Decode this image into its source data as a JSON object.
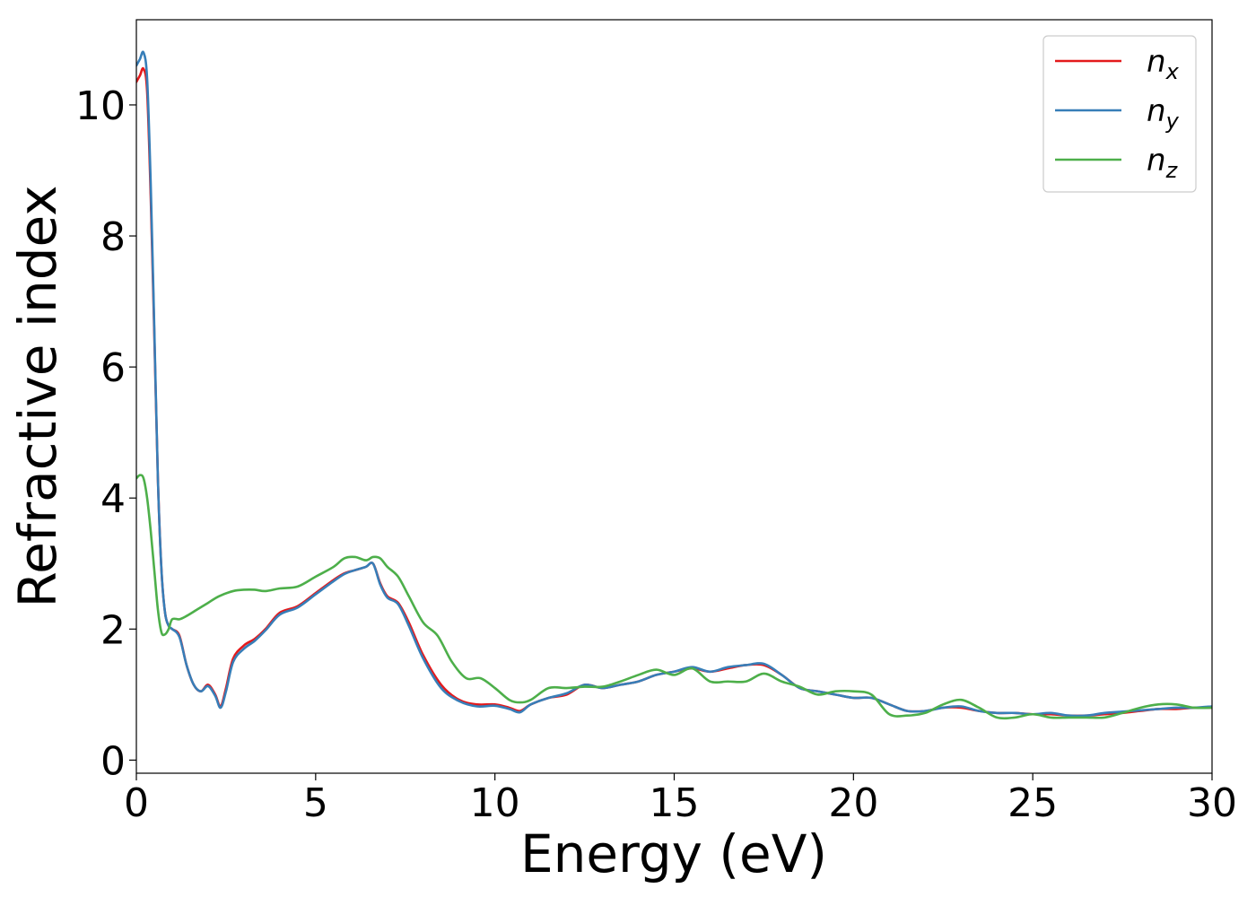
{
  "chart_data": {
    "type": "line",
    "title": "",
    "xlabel": "Energy (eV)",
    "ylabel": "Refractive index",
    "xlim": [
      0,
      30
    ],
    "ylim": [
      -0.2,
      11.3
    ],
    "xticks": [
      0,
      5,
      10,
      15,
      20,
      25,
      30
    ],
    "yticks": [
      0,
      2,
      4,
      6,
      8,
      10
    ],
    "grid": false,
    "legend_position": "top-right",
    "series": [
      {
        "name": "n_x",
        "base": "n",
        "sub": "x",
        "color": "#e41a1c",
        "x": [
          0,
          0.1,
          0.2,
          0.3,
          0.4,
          0.5,
          0.6,
          0.7,
          0.8,
          0.9,
          1.0,
          1.2,
          1.4,
          1.6,
          1.8,
          2.0,
          2.2,
          2.35,
          2.5,
          2.7,
          3.0,
          3.3,
          3.6,
          4.0,
          4.5,
          5.0,
          5.5,
          5.8,
          6.1,
          6.4,
          6.6,
          6.8,
          7.0,
          7.3,
          7.6,
          8.0,
          8.5,
          9.0,
          9.5,
          10.0,
          10.4,
          10.7,
          11.0,
          11.5,
          12.0,
          12.5,
          13.0,
          13.5,
          14.0,
          14.5,
          15.0,
          15.5,
          16.0,
          16.5,
          17.0,
          17.5,
          18.0,
          18.5,
          19.0,
          19.5,
          20.0,
          20.5,
          21.0,
          21.5,
          22.0,
          22.5,
          23.0,
          23.5,
          24.0,
          24.5,
          25.0,
          25.5,
          26.0,
          26.5,
          27.0,
          27.5,
          28.0,
          28.5,
          29.0,
          29.5,
          30.0
        ],
        "values": [
          10.35,
          10.45,
          10.55,
          10.2,
          8.6,
          6.5,
          4.3,
          2.9,
          2.25,
          2.05,
          2.0,
          1.9,
          1.45,
          1.15,
          1.05,
          1.15,
          1.0,
          0.82,
          1.1,
          1.55,
          1.75,
          1.85,
          2.0,
          2.25,
          2.35,
          2.55,
          2.75,
          2.85,
          2.9,
          2.95,
          3.0,
          2.7,
          2.5,
          2.4,
          2.1,
          1.6,
          1.15,
          0.92,
          0.85,
          0.85,
          0.8,
          0.75,
          0.85,
          0.95,
          1.0,
          1.15,
          1.1,
          1.15,
          1.2,
          1.3,
          1.35,
          1.4,
          1.35,
          1.4,
          1.45,
          1.45,
          1.3,
          1.1,
          1.05,
          1.0,
          0.95,
          0.95,
          0.85,
          0.75,
          0.75,
          0.8,
          0.8,
          0.75,
          0.72,
          0.72,
          0.7,
          0.7,
          0.68,
          0.68,
          0.7,
          0.72,
          0.75,
          0.78,
          0.78,
          0.8,
          0.8
        ]
      },
      {
        "name": "n_y",
        "base": "n",
        "sub": "y",
        "color": "#377eb8",
        "x": [
          0,
          0.1,
          0.2,
          0.3,
          0.4,
          0.5,
          0.6,
          0.7,
          0.8,
          0.9,
          1.0,
          1.2,
          1.4,
          1.6,
          1.8,
          2.0,
          2.2,
          2.35,
          2.5,
          2.7,
          3.0,
          3.3,
          3.6,
          4.0,
          4.5,
          5.0,
          5.5,
          5.8,
          6.1,
          6.4,
          6.6,
          6.8,
          7.0,
          7.3,
          7.6,
          8.0,
          8.5,
          9.0,
          9.5,
          10.0,
          10.4,
          10.7,
          11.0,
          11.5,
          12.0,
          12.5,
          13.0,
          13.5,
          14.0,
          14.5,
          15.0,
          15.5,
          16.0,
          16.5,
          17.0,
          17.5,
          18.0,
          18.5,
          19.0,
          19.5,
          20.0,
          20.5,
          21.0,
          21.5,
          22.0,
          22.5,
          23.0,
          23.5,
          24.0,
          24.5,
          25.0,
          25.5,
          26.0,
          26.5,
          27.0,
          27.5,
          28.0,
          28.5,
          29.0,
          29.5,
          30.0
        ],
        "values": [
          10.6,
          10.7,
          10.8,
          10.4,
          8.8,
          6.6,
          4.3,
          2.9,
          2.25,
          2.05,
          2.0,
          1.88,
          1.45,
          1.15,
          1.05,
          1.13,
          0.98,
          0.8,
          1.05,
          1.5,
          1.7,
          1.82,
          1.98,
          2.22,
          2.33,
          2.53,
          2.73,
          2.84,
          2.9,
          2.95,
          3.0,
          2.68,
          2.48,
          2.38,
          2.05,
          1.55,
          1.1,
          0.9,
          0.82,
          0.83,
          0.78,
          0.73,
          0.85,
          0.95,
          1.02,
          1.15,
          1.1,
          1.15,
          1.2,
          1.3,
          1.35,
          1.42,
          1.35,
          1.42,
          1.45,
          1.47,
          1.3,
          1.1,
          1.05,
          1.0,
          0.95,
          0.95,
          0.85,
          0.75,
          0.75,
          0.8,
          0.82,
          0.75,
          0.72,
          0.72,
          0.7,
          0.72,
          0.68,
          0.68,
          0.72,
          0.74,
          0.76,
          0.78,
          0.8,
          0.8,
          0.82
        ]
      },
      {
        "name": "n_z",
        "base": "n",
        "sub": "z",
        "color": "#4daf4a",
        "x": [
          0,
          0.1,
          0.2,
          0.3,
          0.4,
          0.5,
          0.6,
          0.7,
          0.8,
          0.9,
          1.0,
          1.2,
          1.4,
          1.7,
          2.0,
          2.3,
          2.7,
          3.0,
          3.3,
          3.6,
          4.0,
          4.5,
          5.0,
          5.5,
          5.8,
          6.1,
          6.4,
          6.6,
          6.8,
          7.0,
          7.3,
          7.6,
          8.0,
          8.4,
          8.8,
          9.2,
          9.6,
          10.0,
          10.4,
          10.7,
          11.0,
          11.5,
          12.0,
          12.5,
          13.0,
          13.5,
          14.0,
          14.5,
          15.0,
          15.5,
          16.0,
          16.5,
          17.0,
          17.5,
          18.0,
          18.5,
          19.0,
          19.5,
          20.0,
          20.5,
          21.0,
          21.5,
          22.0,
          22.5,
          23.0,
          23.5,
          24.0,
          24.5,
          25.0,
          25.5,
          26.0,
          26.5,
          27.0,
          27.5,
          28.0,
          28.5,
          29.0,
          29.5,
          30.0
        ],
        "values": [
          4.3,
          4.35,
          4.3,
          4.0,
          3.5,
          2.9,
          2.3,
          1.95,
          1.92,
          2.0,
          2.15,
          2.15,
          2.2,
          2.3,
          2.4,
          2.5,
          2.58,
          2.6,
          2.6,
          2.58,
          2.62,
          2.65,
          2.8,
          2.95,
          3.08,
          3.1,
          3.05,
          3.1,
          3.08,
          2.95,
          2.8,
          2.5,
          2.1,
          1.9,
          1.5,
          1.25,
          1.25,
          1.1,
          0.92,
          0.88,
          0.92,
          1.1,
          1.1,
          1.12,
          1.12,
          1.2,
          1.3,
          1.38,
          1.3,
          1.4,
          1.2,
          1.2,
          1.2,
          1.32,
          1.2,
          1.12,
          1.0,
          1.05,
          1.05,
          1.0,
          0.7,
          0.68,
          0.72,
          0.85,
          0.92,
          0.8,
          0.65,
          0.65,
          0.7,
          0.65,
          0.65,
          0.65,
          0.65,
          0.72,
          0.8,
          0.85,
          0.85,
          0.8,
          0.8
        ]
      }
    ]
  }
}
